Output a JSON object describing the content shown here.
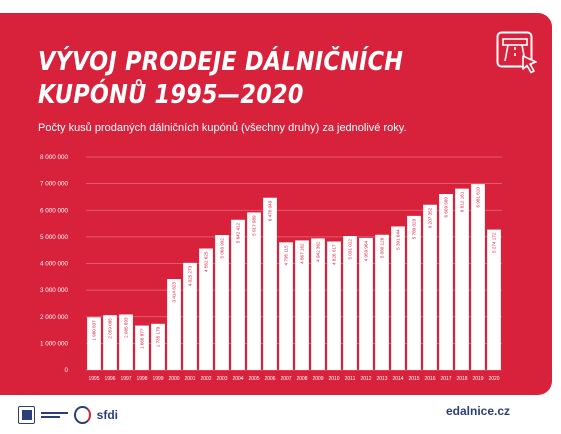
{
  "title_line1": "VÝVOJ PRODEJE DÁLNIČNÍCH",
  "title_line2": "KUPÓNŮ 1995—2020",
  "subtitle": "Počty kusů prodaných dálničních kupónů (všechny druhy) za jednolivé roky.",
  "footer": {
    "website": "edalnice.cz",
    "logo_text": "sfdi"
  },
  "icons": {
    "corner": "highway-cursor-icon",
    "footer_left": "ministry-logo-icon",
    "footer_sfdi": "sfdi-logo-icon"
  },
  "colors": {
    "background": "#d8213b",
    "bars": "#ffffff",
    "text": "#ffffff",
    "brand_blue": "#2b3e7a"
  },
  "chart_data": {
    "type": "bar",
    "title": "VÝVOJ PRODEJE DÁLNIČNÍCH KUPÓNŮ 1995—2020",
    "subtitle": "Počty kusů prodaných dálničních kupónů (všechny druhy) za jednolivé roky.",
    "xlabel": "",
    "ylabel": "",
    "ylim": [
      0,
      8000000
    ],
    "yticks": [
      0,
      1000000,
      2000000,
      3000000,
      4000000,
      5000000,
      6000000,
      7000000,
      8000000
    ],
    "ytick_labels": [
      "0",
      "1 000 000",
      "2 000 000",
      "3 000 000",
      "4 000 000",
      "5 000 000",
      "6 000 000",
      "7 000 000",
      "8 000 000"
    ],
    "grid": "horizontal",
    "categories": [
      "1995",
      "1996",
      "1997",
      "1998",
      "1999",
      "2000",
      "2001",
      "2002",
      "2003",
      "2004",
      "2005",
      "2006",
      "2007",
      "2008",
      "2009",
      "2010",
      "2011",
      "2012",
      "2013",
      "2014",
      "2015",
      "2016",
      "2017",
      "2018",
      "2019",
      "2020"
    ],
    "values": [
      1980837,
      2059085,
      2085893,
      1668877,
      1735179,
      3414823,
      4025273,
      4562625,
      5068992,
      5642412,
      5917989,
      6470049,
      4795115,
      4867162,
      4942362,
      4826017,
      5031022,
      4959964,
      5080128,
      5391644,
      5789029,
      6207352,
      6609569,
      6812161,
      6981610,
      5274172
    ],
    "value_labels": [
      "1 980 837",
      "2 059 085",
      "2 085 893",
      "1 668 877",
      "1 735 179",
      "3 414 823",
      "4 025 273",
      "4 562 625",
      "5 068 992",
      "5 642 412",
      "5 917 989",
      "6 470 049",
      "4 795 115",
      "4 867 162",
      "4 942 362",
      "4 826 017",
      "5 031 022",
      "4 959 964",
      "5 080 128",
      "5 391 644",
      "5 789 029",
      "6 207 352",
      "6 609 569",
      "6 812 161",
      "6 981 610",
      "5 274 172"
    ]
  }
}
